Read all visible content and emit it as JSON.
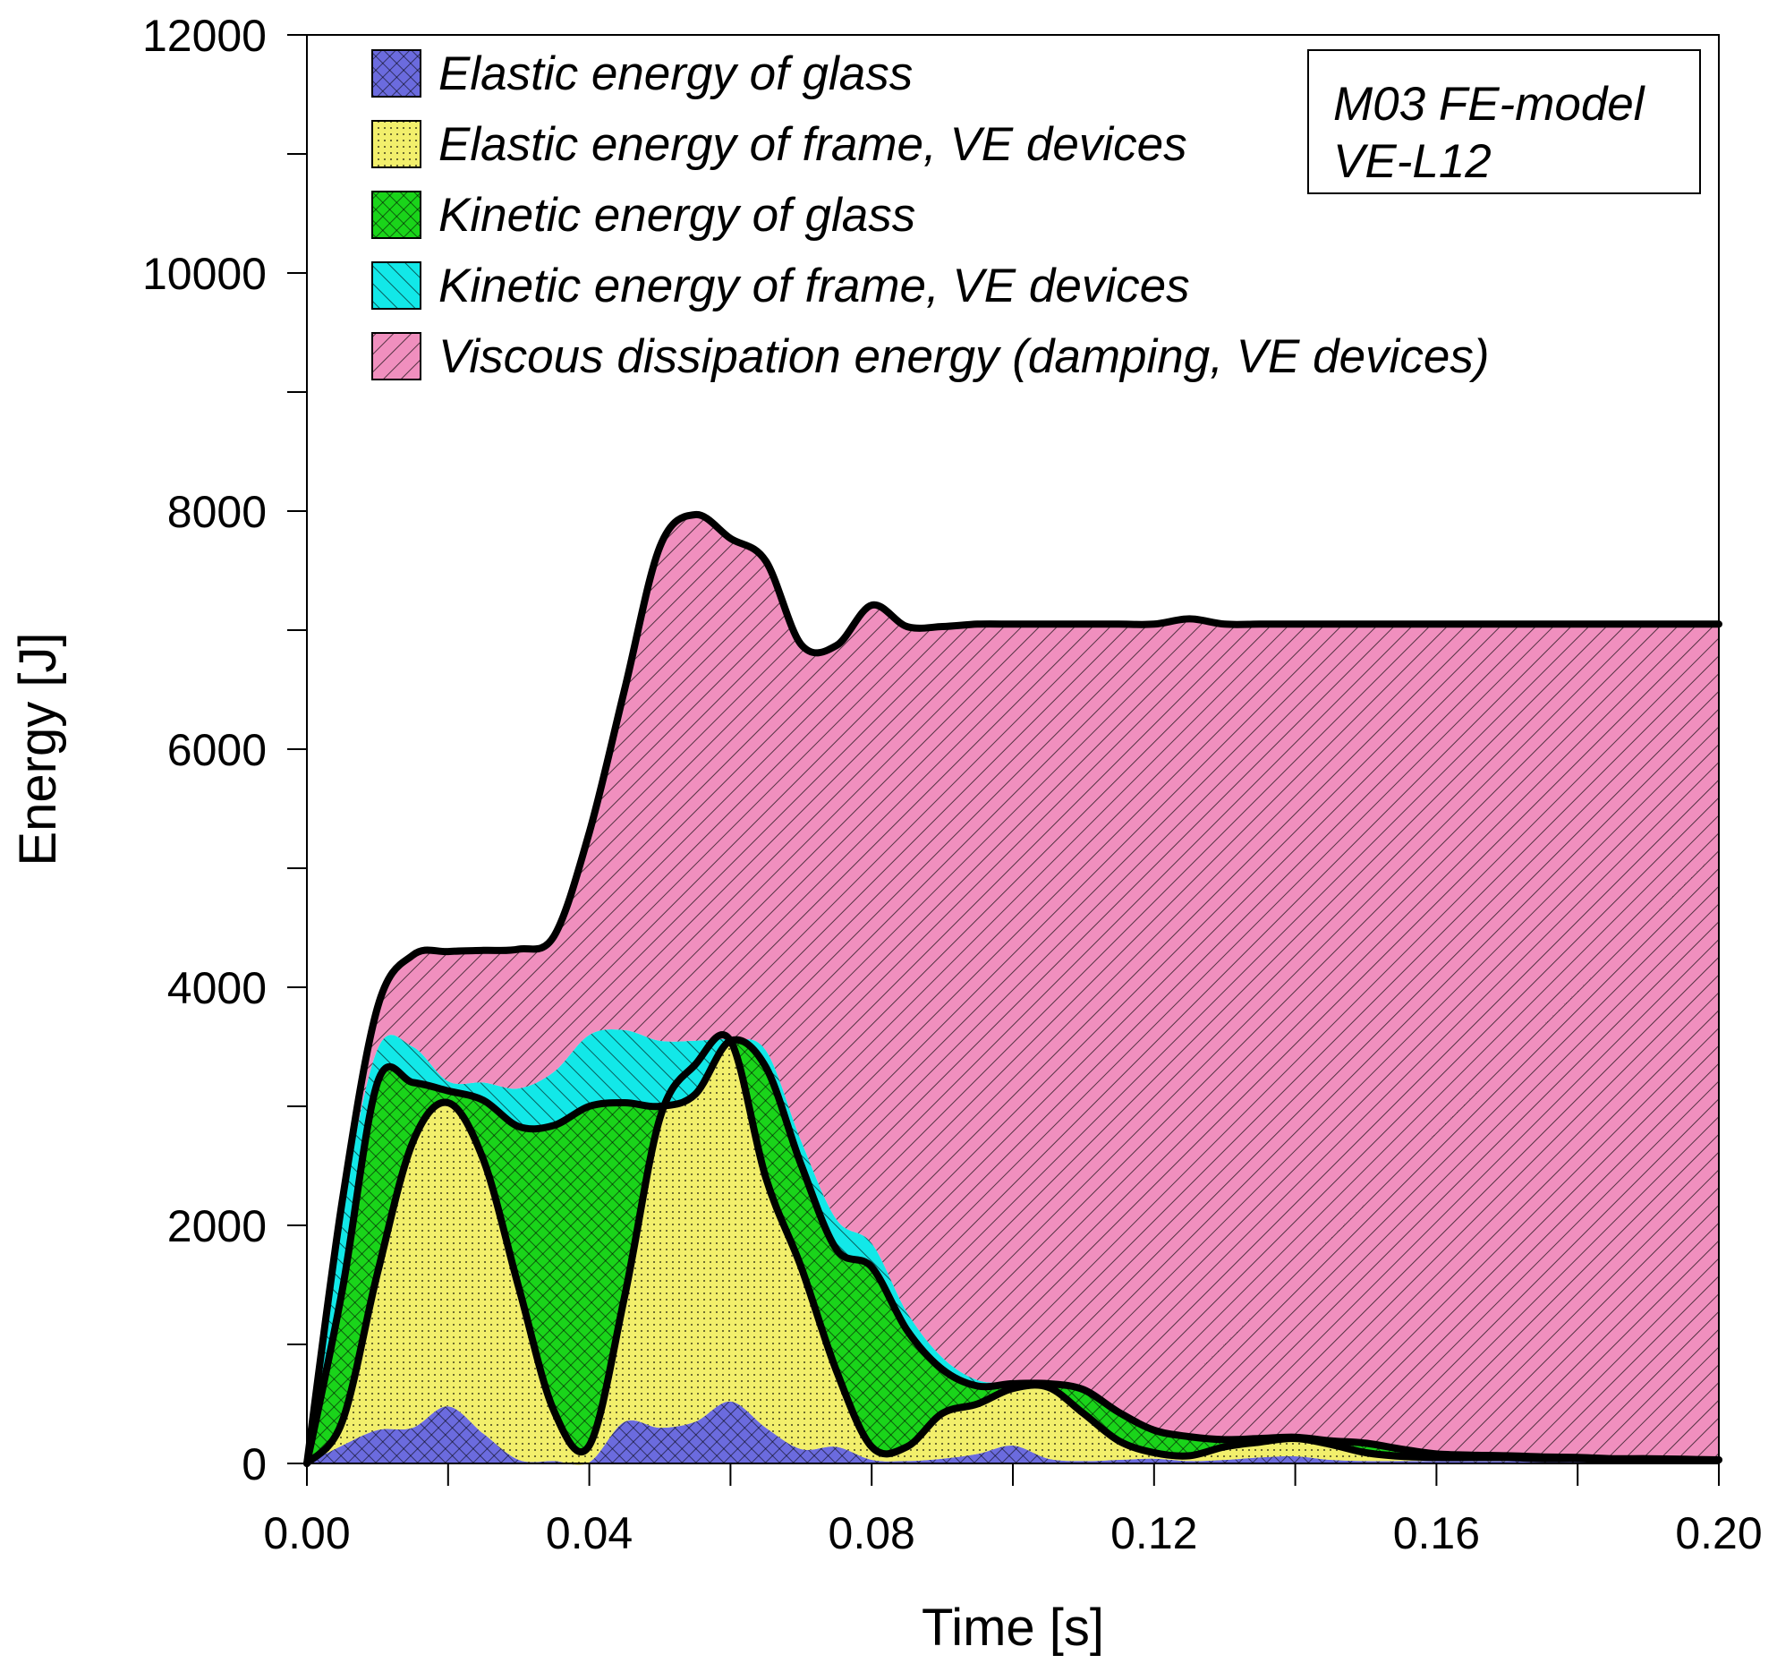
{
  "chart_data": {
    "type": "area",
    "stacked": true,
    "xlabel": "Time [s]",
    "ylabel": "Energy [J]",
    "xlim": [
      0,
      0.2
    ],
    "ylim": [
      0,
      12000
    ],
    "x_ticks": [
      "0.00",
      "0.04",
      "0.08",
      "0.12",
      "0.16",
      "0.20"
    ],
    "y_ticks": [
      "0",
      "2000",
      "4000",
      "6000",
      "8000",
      "10000",
      "12000"
    ],
    "annotation": [
      "M03 FE-model",
      "VE-L12"
    ],
    "legend_position": "top-left",
    "x": [
      0,
      0.005,
      0.01,
      0.015,
      0.02,
      0.025,
      0.03,
      0.035,
      0.04,
      0.045,
      0.05,
      0.055,
      0.06,
      0.065,
      0.07,
      0.075,
      0.08,
      0.085,
      0.09,
      0.095,
      0.1,
      0.105,
      0.11,
      0.115,
      0.12,
      0.125,
      0.13,
      0.135,
      0.14,
      0.145,
      0.15,
      0.155,
      0.16,
      0.165,
      0.17,
      0.175,
      0.18,
      0.185,
      0.19,
      0.195,
      0.2
    ],
    "series": [
      {
        "name": "Elastic energy of glass",
        "color": "#6b6bde",
        "pattern": "crosshatch",
        "values": [
          0,
          150,
          280,
          300,
          480,
          250,
          30,
          20,
          10,
          350,
          300,
          350,
          520,
          300,
          120,
          140,
          30,
          20,
          40,
          80,
          150,
          40,
          20,
          30,
          40,
          20,
          30,
          50,
          60,
          30,
          20,
          20,
          20,
          20,
          20,
          15,
          15,
          10,
          10,
          10,
          10
        ]
      },
      {
        "name": "Elastic energy of frame, VE devices",
        "color": "#f2ef6c",
        "pattern": "dots",
        "values": [
          0,
          200,
          1320,
          2400,
          2550,
          2300,
          1450,
          420,
          140,
          1050,
          2600,
          3000,
          3030,
          2100,
          1530,
          640,
          110,
          120,
          380,
          420,
          480,
          600,
          400,
          160,
          50,
          45,
          110,
          130,
          150,
          130,
          70,
          40,
          30,
          30,
          30,
          25,
          25,
          20,
          20,
          20,
          20
        ]
      },
      {
        "name": "Kinetic energy of glass",
        "color": "#1ad41a",
        "pattern": "crosshatch",
        "values": [
          0,
          1100,
          1600,
          500,
          100,
          500,
          1350,
          2400,
          2850,
          1630,
          100,
          -250,
          0,
          930,
          860,
          1020,
          1510,
          980,
          370,
          150,
          40,
          30,
          200,
          240,
          190,
          160,
          60,
          30,
          10,
          30,
          80,
          60,
          30,
          20,
          15,
          15,
          10,
          10,
          10,
          5,
          0
        ]
      },
      {
        "name": "Kinetic energy of frame, VE devices",
        "color": "#12e8e8",
        "pattern": "diagonal",
        "values": [
          0,
          650,
          280,
          300,
          80,
          150,
          320,
          450,
          600,
          610,
          550,
          450,
          10,
          140,
          200,
          250,
          200,
          150,
          100,
          50,
          10,
          10,
          10,
          10,
          10,
          10,
          10,
          10,
          10,
          10,
          10,
          10,
          10,
          10,
          10,
          10,
          10,
          10,
          10,
          10,
          10
        ]
      },
      {
        "name": "Viscous dissipation energy (damping, VE devices)",
        "color": "#f08fbe",
        "pattern": "diagonal",
        "values": [
          0,
          100,
          350,
          770,
          1090,
          1110,
          1170,
          1140,
          1700,
          2860,
          4150,
          4420,
          4210,
          4110,
          4170,
          4820,
          5360,
          5760,
          6140,
          6350,
          6370,
          6370,
          6420,
          6610,
          6760,
          6860,
          6840,
          6830,
          6820,
          6850,
          6870,
          6920,
          6960,
          6970,
          6975,
          6985,
          6990,
          7000,
          7000,
          7005,
          7010
        ]
      }
    ]
  }
}
